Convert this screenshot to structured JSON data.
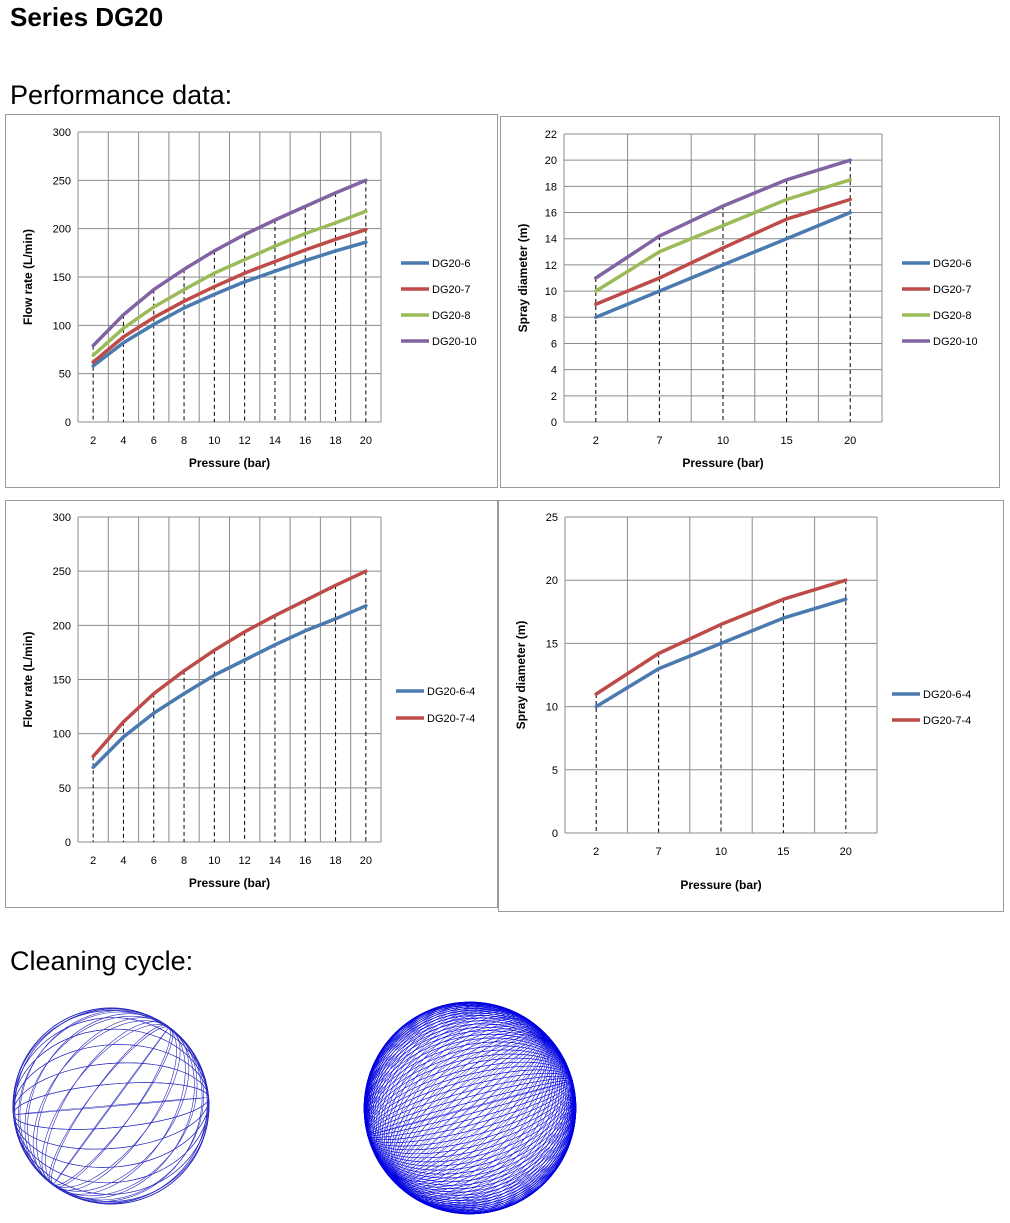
{
  "page": {
    "title": "Series DG20",
    "performance_heading": "Performance data:",
    "cleaning_heading": "Cleaning cycle:"
  },
  "colors": {
    "DG20-6": "#4a7ab0",
    "DG20-7": "#be4b48",
    "DG20-8": "#9bbb59",
    "DG20-10": "#8064a2",
    "sphere_sparse": "#2a2ac0",
    "sphere_dense": "#0000e0"
  },
  "cleaning_cycle": {
    "patterns": [
      "sparse-spiral-sphere",
      "dense-spiral-sphere"
    ]
  },
  "chart_data": [
    {
      "type": "line",
      "xlabel": "Pressure (bar)",
      "ylabel": "Flow rate (L/min)",
      "ylim": [
        0,
        300
      ],
      "yticks": [
        0,
        50,
        100,
        150,
        200,
        250,
        300
      ],
      "x_axis": "category",
      "categories": [
        "2",
        "4",
        "6",
        "8",
        "10",
        "12",
        "14",
        "16",
        "18",
        "20"
      ],
      "grid": true,
      "legend": "right",
      "series": [
        {
          "name": "DG20-6",
          "color": "#4a7ab0",
          "values": [
            58,
            82,
            101,
            118,
            132,
            145,
            156,
            167,
            177,
            186
          ]
        },
        {
          "name": "DG20-7",
          "color": "#be4b48",
          "values": [
            62,
            88,
            108,
            125,
            140,
            154,
            166,
            178,
            189,
            199
          ]
        },
        {
          "name": "DG20-8",
          "color": "#9bbb59",
          "values": [
            69,
            97,
            119,
            137,
            154,
            168,
            182,
            195,
            206,
            218
          ]
        },
        {
          "name": "DG20-10",
          "color": "#8064a2",
          "values": [
            79,
            111,
            137,
            158,
            177,
            194,
            209,
            223,
            237,
            250
          ]
        }
      ]
    },
    {
      "type": "line",
      "xlabel": "Pressure (bar)",
      "ylabel": "Spray diameter (m)",
      "ylim": [
        0,
        22
      ],
      "yticks": [
        0,
        2,
        4,
        6,
        8,
        10,
        12,
        14,
        16,
        18,
        20,
        22
      ],
      "x_axis": "category",
      "categories": [
        "2",
        "7",
        "10",
        "15",
        "20"
      ],
      "grid": true,
      "legend": "right",
      "series": [
        {
          "name": "DG20-6",
          "color": "#4a7ab0",
          "values": [
            8,
            10,
            12,
            14,
            16
          ]
        },
        {
          "name": "DG20-7",
          "color": "#be4b48",
          "values": [
            9,
            11,
            13.3,
            15.5,
            17
          ]
        },
        {
          "name": "DG20-8",
          "color": "#9bbb59",
          "values": [
            10,
            13,
            15,
            17,
            18.5
          ]
        },
        {
          "name": "DG20-10",
          "color": "#8064a2",
          "values": [
            11,
            14.2,
            16.5,
            18.5,
            20
          ]
        }
      ]
    },
    {
      "type": "line",
      "xlabel": "Pressure (bar)",
      "ylabel": "Flow rate (L/min)",
      "ylim": [
        0,
        300
      ],
      "yticks": [
        0,
        50,
        100,
        150,
        200,
        250,
        300
      ],
      "x_axis": "category",
      "categories": [
        "2",
        "4",
        "6",
        "8",
        "10",
        "12",
        "14",
        "16",
        "18",
        "20"
      ],
      "grid": true,
      "legend": "right",
      "series": [
        {
          "name": "DG20-6-4",
          "color": "#4a7ab0",
          "values": [
            69,
            97,
            119,
            137,
            154,
            168,
            182,
            195,
            206,
            218
          ]
        },
        {
          "name": "DG20-7-4",
          "color": "#be4b48",
          "values": [
            79,
            111,
            137,
            158,
            177,
            194,
            209,
            223,
            237,
            250
          ]
        }
      ]
    },
    {
      "type": "line",
      "xlabel": "Pressure  (bar)",
      "ylabel": "Spray diameter (m)",
      "ylim": [
        0,
        25
      ],
      "yticks": [
        0,
        5,
        10,
        15,
        20,
        25
      ],
      "x_axis": "category",
      "categories": [
        "2",
        "7",
        "10",
        "15",
        "20"
      ],
      "grid": true,
      "legend": "right",
      "series": [
        {
          "name": "DG20-6-4",
          "color": "#4a7ab0",
          "values": [
            10,
            13,
            15,
            17,
            18.5
          ]
        },
        {
          "name": "DG20-7-4",
          "color": "#be4b48",
          "values": [
            11,
            14.2,
            16.5,
            18.5,
            20
          ]
        }
      ]
    }
  ]
}
